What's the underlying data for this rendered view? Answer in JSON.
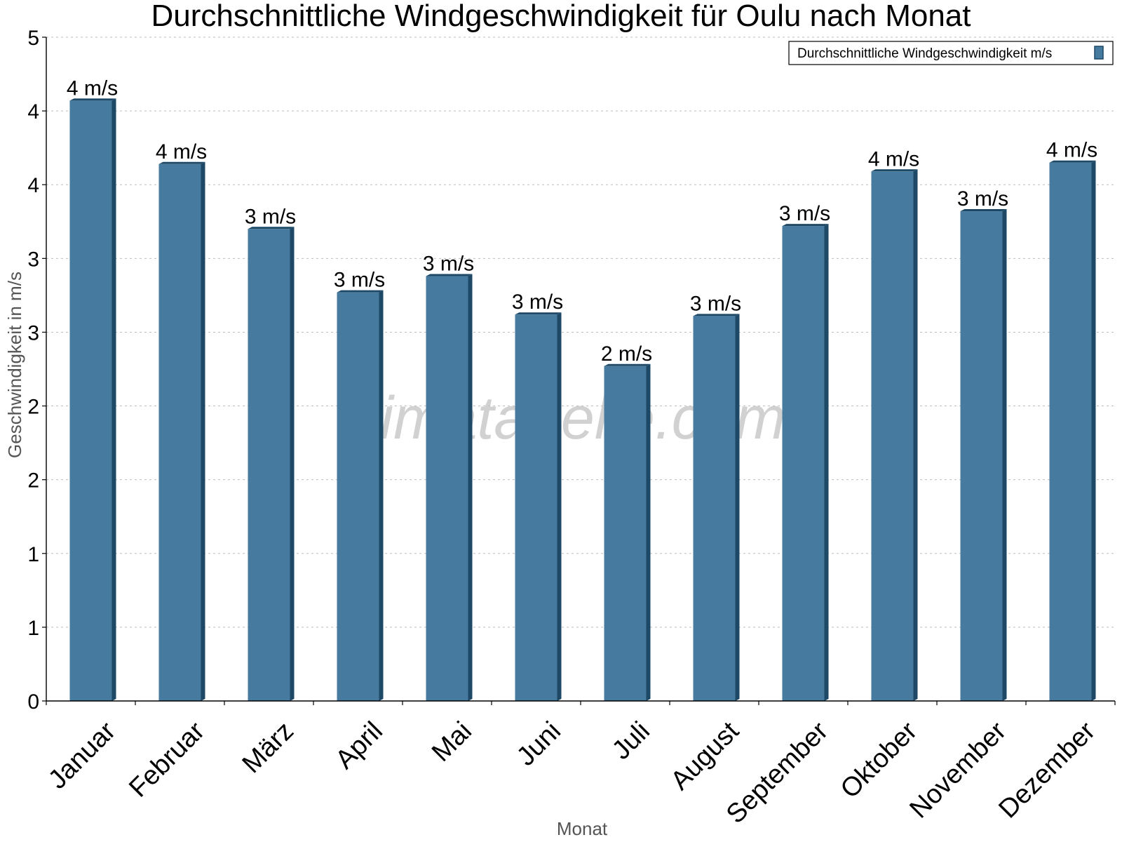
{
  "chart_data": {
    "type": "bar",
    "title": "Durchschnittliche Windgeschwindigkeit für Oulu nach Monat",
    "xlabel": "Monat",
    "ylabel": "Geschwindigkeit in m/s",
    "categories": [
      "Januar",
      "Februar",
      "März",
      "April",
      "Mai",
      "Juni",
      "Juli",
      "August",
      "September",
      "Oktober",
      "November",
      "Dezember"
    ],
    "series": [
      {
        "name": "Durchschnittliche Windgeschwindigkeit m/s",
        "values": [
          4.07,
          3.64,
          3.2,
          2.77,
          2.88,
          2.62,
          2.27,
          2.61,
          3.22,
          3.59,
          3.32,
          3.65
        ],
        "labels": [
          "4 m/s",
          "4 m/s",
          "3 m/s",
          "3 m/s",
          "3 m/s",
          "3 m/s",
          "2 m/s",
          "3 m/s",
          "3 m/s",
          "4 m/s",
          "3 m/s",
          "4 m/s"
        ],
        "color": "#467a9e"
      }
    ],
    "ylim": [
      0,
      4.5
    ],
    "yticks": [
      0,
      0.5,
      1,
      1.5,
      2,
      2.5,
      3,
      3.5,
      4,
      4.5
    ],
    "ytick_labels": [
      "0",
      "1",
      "1",
      "2",
      "2",
      "3",
      "3",
      "4",
      "4",
      "5"
    ],
    "grid": true,
    "legend_position": "top-right",
    "watermark": "klimatabelle.com"
  }
}
